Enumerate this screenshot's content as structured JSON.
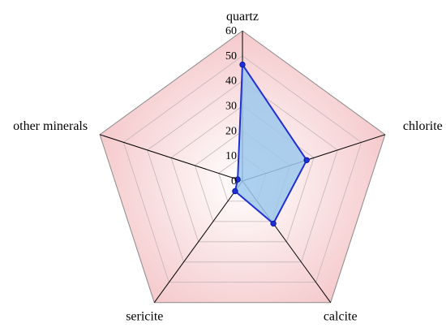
{
  "chart_data": {
    "type": "radar",
    "title": "",
    "categories": [
      "quartz",
      "chlorite",
      "calcite",
      "sericite",
      "other minerals"
    ],
    "series": [
      {
        "values": [
          46.5,
          27,
          21,
          5,
          2
        ]
      }
    ],
    "rlim": [
      0,
      60
    ],
    "ticks": [
      0,
      10,
      20,
      30,
      40,
      50,
      60
    ],
    "tick_labels": [
      "0",
      "10",
      "20",
      "30",
      "40",
      "50",
      "60"
    ],
    "grid": true,
    "legend": "none",
    "colors": {
      "series_line": "#1f2fd6",
      "series_fill": "#9ec8ec",
      "marker": "#1f2fd6",
      "background_outer": "#f3bfc2",
      "background_inner": "#ffffff",
      "gridline": "#c4b6b8",
      "spoke": "#000000",
      "outline": "#8a8a8a"
    }
  }
}
